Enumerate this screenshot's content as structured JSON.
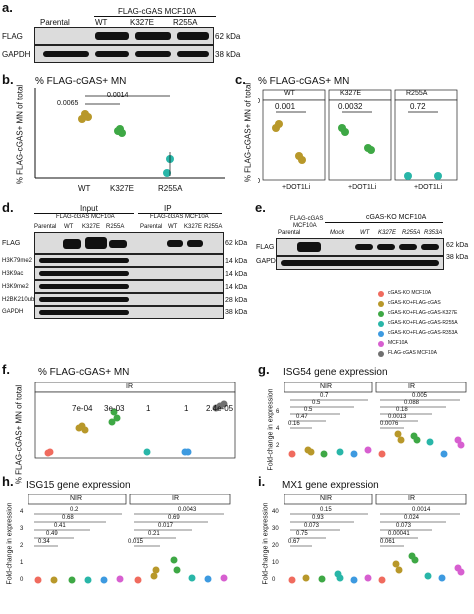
{
  "panel_a": {
    "label": "a.",
    "header": "FLAG-cGAS MCF10A",
    "lanes": [
      "Parental",
      "WT",
      "K327E",
      "R255A"
    ],
    "rows": [
      {
        "name": "FLAG",
        "kda": "62 kDa"
      },
      {
        "name": "GAPDH",
        "kda": "38 kDa"
      }
    ]
  },
  "panel_b": {
    "label": "b.",
    "title": "% FLAG-cGAS+ MN",
    "ylabel": "% FLAG-cGAS+ MN of total",
    "pvals": [
      "0.0065",
      "0.0014"
    ]
  },
  "panel_c": {
    "label": "c.",
    "title": "% FLAG-cGAS+ MN",
    "ylabel": "% FLAG-cGAS+ MN of total",
    "facets": [
      {
        "name": "WT",
        "p": "0.001"
      },
      {
        "name": "K327E",
        "p": "0.0032"
      },
      {
        "name": "R255A",
        "p": "0.72"
      }
    ],
    "xtick": "+DOT1Li"
  },
  "panel_d": {
    "label": "d.",
    "input": "Input",
    "ip": "IP",
    "header": "FLAG-cGAS MCF10A",
    "lanes_input": [
      "Parental",
      "WT",
      "K327E",
      "R255A"
    ],
    "lanes_ip": [
      "Parental",
      "WT",
      "K327E",
      "R255A"
    ],
    "rows": [
      {
        "name": "FLAG",
        "kda": "62 kDa"
      },
      {
        "name": "H3K79me2",
        "kda": "14 kDa"
      },
      {
        "name": "H3K9ac",
        "kda": "14 kDa"
      },
      {
        "name": "H3K9me2",
        "kda": "14 kDa"
      },
      {
        "name": "H2BK210ub",
        "kda": "28 kDa"
      },
      {
        "name": "GAPDH",
        "kda": "38 kDa"
      }
    ]
  },
  "panel_e": {
    "label": "e.",
    "header_left": "FLAG-cGAS",
    "header_left2": "MCF10A",
    "header_right": "cGAS-KO MCF10A",
    "lanes": [
      "Parental",
      "Mock",
      "WT",
      "K327E",
      "R255A",
      "R353A"
    ],
    "rows": [
      {
        "name": "FLAG",
        "kda": "62 kDa"
      },
      {
        "name": "GAPDH",
        "kda": "38 kDa"
      }
    ]
  },
  "legend": [
    {
      "label": "cGAS-KO MCF10A",
      "color": "#f06b5e"
    },
    {
      "label": "cGAS-KO+FLAG-cGAS",
      "color": "#b8982a"
    },
    {
      "label": "cGAS-KO+FLAG-cGAS-K327E",
      "color": "#3ea845"
    },
    {
      "label": "cGAS-KO+FLAG-cGAS-R255A",
      "color": "#29b6a8"
    },
    {
      "label": "cGAS-KO+FLAG-cGAS-R353A",
      "color": "#3d9ae0"
    },
    {
      "label": "MCF10A",
      "color": "#d75fd0"
    },
    {
      "label": "FLAG-cGAS MCF10A",
      "color": "#707070"
    }
  ],
  "panel_f": {
    "label": "f.",
    "title": "% FLAG-cGAS+ MN",
    "facet": "IR",
    "ylabel": "% FLAG-cGAS+ MN of total",
    "pvals": [
      "7e-04",
      "3e-03",
      "1",
      "1",
      "2.4e-05"
    ]
  },
  "panel_g": {
    "label": "g.",
    "title": "ISG54 gene expression",
    "ylabel": "Fold-change in expression",
    "facets": [
      "NIR",
      "IR"
    ],
    "nir_p": [
      "0.7",
      "0.5",
      "0.5",
      "0.47",
      "0.16"
    ],
    "ir_p": [
      "0.005",
      "0.088",
      "0.18",
      "0.0013",
      "0.0076"
    ],
    "yticks": [
      "2",
      "4",
      "6"
    ]
  },
  "panel_h": {
    "label": "h.",
    "title": "ISG15 gene expression",
    "ylabel": "Fold-change in expression",
    "facets": [
      "NIR",
      "IR"
    ],
    "nir_p": [
      "0.2",
      "0.68",
      "0.41",
      "0.49",
      "0.34"
    ],
    "ir_p": [
      "0.0043",
      "0.69",
      "0.017",
      "0.015",
      "0.21"
    ],
    "yticks": [
      "0",
      "1",
      "2",
      "3",
      "4"
    ]
  },
  "panel_i": {
    "label": "i.",
    "title": "MX1 gene expression",
    "ylabel": "Fold-change in expression",
    "facets": [
      "NIR",
      "IR"
    ],
    "nir_p": [
      "0.15",
      "0.93",
      "0.073",
      "0.75",
      "0.67"
    ],
    "ir_p": [
      "0.0014",
      "0.024",
      "0.073",
      "0.00041",
      "0.061"
    ],
    "yticks": [
      "0",
      "10",
      "20",
      "30",
      "40"
    ]
  },
  "chart_data": [
    {
      "type": "scatter",
      "title": "% FLAG-cGAS+ MN",
      "categories": [
        "WT",
        "K327E",
        "R255A"
      ],
      "series": [
        {
          "values": [
            84,
            62,
            8
          ]
        }
      ],
      "ylim": [
        0,
        100
      ],
      "ylabel": "% FLAG-cGAS+ MN of total"
    },
    {
      "type": "scatter",
      "title": "% FLAG-cGAS+ MN",
      "categories": [
        "WT",
        "WT+DOT1Li",
        "K327E",
        "K327E+DOT1Li",
        "R255A",
        "R255A+DOT1Li"
      ],
      "series": [
        {
          "values": [
            76,
            25,
            71,
            38,
            4,
            4
          ]
        }
      ],
      "ylim": [
        0,
        100
      ]
    },
    {
      "type": "scatter",
      "title": "% FLAG-cGAS+ MN",
      "categories": [
        "cGAS-KO",
        "FLAG-cGAS",
        "K327E",
        "R255A",
        "R353A",
        "FLAG-cGAS MCF10A"
      ],
      "series": [
        {
          "values": [
            0,
            40,
            55,
            0,
            0,
            75
          ]
        }
      ],
      "ylim": [
        0,
        100
      ]
    }
  ]
}
